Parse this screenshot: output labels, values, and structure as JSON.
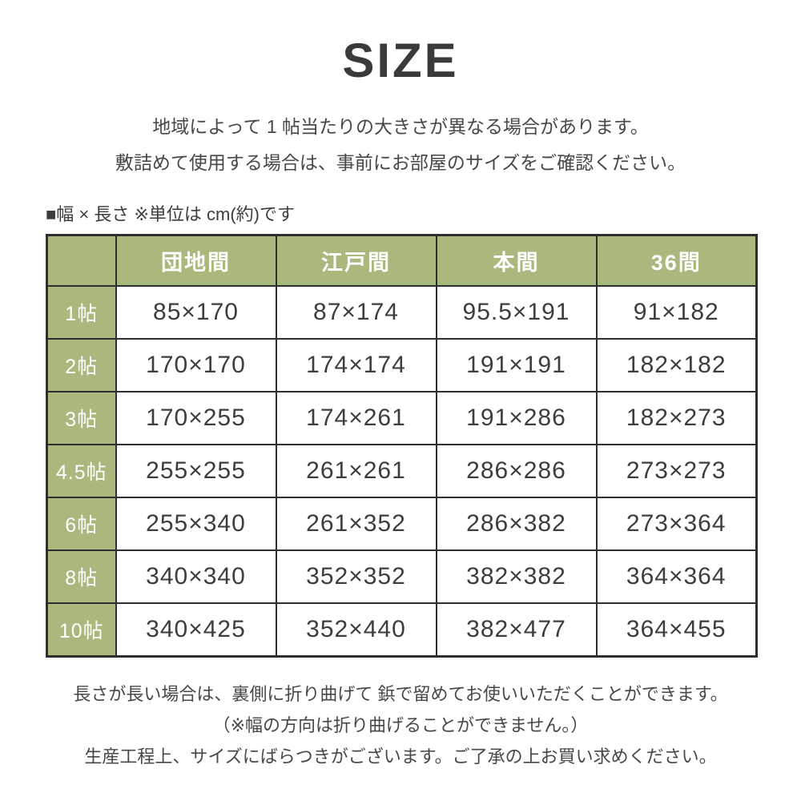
{
  "colors": {
    "accent_green": "#a9b87c",
    "table_border": "#2e2e2e",
    "body_text": "#3c3c3c",
    "header_text": "#ffffff"
  },
  "header": {
    "title": "SIZE",
    "intro": [
      "地域によって 1 帖当たりの大きさが異なる場合があります。",
      "敷詰めて使用する場合は、事前にお部屋のサイズをご確認ください。"
    ]
  },
  "unit_note": "■幅 × 長さ ※単位は cm(約)です",
  "chart_data": {
    "type": "table",
    "title": "SIZE",
    "unit": "cm",
    "columns": [
      "団地間",
      "江戸間",
      "本間",
      "36間"
    ],
    "row_labels": [
      "1帖",
      "2帖",
      "3帖",
      "4.5帖",
      "6帖",
      "8帖",
      "10帖"
    ],
    "rows": [
      [
        "85×170",
        "87×174",
        "95.5×191",
        "91×182"
      ],
      [
        "170×170",
        "174×174",
        "191×191",
        "182×182"
      ],
      [
        "170×255",
        "174×261",
        "191×286",
        "182×273"
      ],
      [
        "255×255",
        "261×261",
        "286×286",
        "273×273"
      ],
      [
        "255×340",
        "261×352",
        "286×382",
        "273×364"
      ],
      [
        "340×340",
        "352×352",
        "382×382",
        "364×364"
      ],
      [
        "340×425",
        "352×440",
        "382×477",
        "364×455"
      ]
    ]
  },
  "footer": {
    "notes": [
      "長さが長い場合は、裏側に折り曲げて 鋲で留めてお使いいただくことができます。",
      "（※幅の方向は折り曲げることができません。）",
      "生産工程上、サイズにばらつきがございます。ご了承の上お買い求めください。"
    ]
  }
}
